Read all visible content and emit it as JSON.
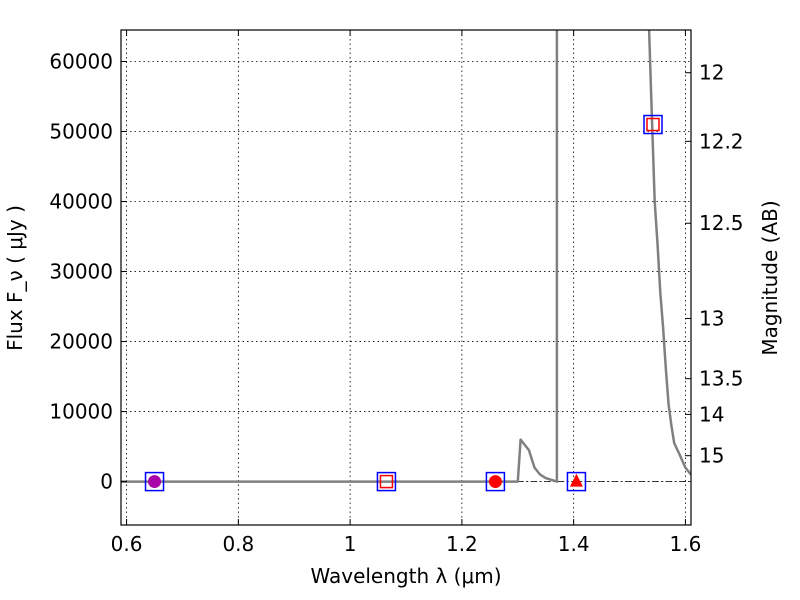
{
  "chart_data": {
    "type": "line",
    "title": "",
    "xlabel": "Wavelength  λ (μm)",
    "ylabel": "Flux  F_ν  ( μJy )",
    "ylabel_right": "Magnitude (AB)",
    "xlim": [
      0.59,
      1.61
    ],
    "ylim": [
      -6200,
      64500
    ],
    "grid": true,
    "x_ticks": [
      0.6,
      0.8,
      1.0,
      1.2,
      1.4,
      1.6
    ],
    "x_tick_labels": [
      "0.6",
      "0.8",
      "1",
      "1.2",
      "1.4",
      "1.6"
    ],
    "y_ticks": [
      0,
      10000,
      20000,
      30000,
      40000,
      50000,
      60000
    ],
    "y_tick_labels": [
      "0",
      "10000",
      "20000",
      "30000",
      "40000",
      "50000",
      "60000"
    ],
    "right_ticks": [
      {
        "label": "12",
        "flux": 58400
      },
      {
        "label": "12.2",
        "flux": 48600
      },
      {
        "label": "12.5",
        "flux": 36900
      },
      {
        "label": "13",
        "flux": 23300
      },
      {
        "label": "13.5",
        "flux": 14700
      },
      {
        "label": "14",
        "flux": 9600
      },
      {
        "label": "15",
        "flux": 3700
      }
    ],
    "series": [
      {
        "type": "line",
        "color": "#808080",
        "points": [
          [
            0.59,
            0
          ],
          [
            1.3,
            0
          ],
          [
            1.305,
            6000
          ],
          [
            1.32,
            4500
          ],
          [
            1.33,
            2000
          ],
          [
            1.34,
            1000
          ],
          [
            1.35,
            500
          ],
          [
            1.37,
            0
          ],
          [
            1.37,
            64500
          ]
        ]
      },
      {
        "type": "line",
        "color": "#808080",
        "points": [
          [
            1.535,
            64500
          ],
          [
            1.54,
            52000
          ],
          [
            1.545,
            40000
          ],
          [
            1.55,
            34000
          ],
          [
            1.555,
            27000
          ],
          [
            1.56,
            22000
          ],
          [
            1.565,
            16000
          ],
          [
            1.57,
            11000
          ],
          [
            1.575,
            8000
          ],
          [
            1.58,
            5500
          ],
          [
            1.59,
            3800
          ],
          [
            1.6,
            2000
          ],
          [
            1.61,
            1000
          ]
        ]
      }
    ],
    "markers": [
      {
        "x": 0.65,
        "y": 0,
        "shape": "square",
        "color": "#0000ff"
      },
      {
        "x": 0.65,
        "y": 0,
        "shape": "circle",
        "color": "#aa00aa"
      },
      {
        "x": 1.065,
        "y": 0,
        "shape": "square",
        "color": "#0000ff"
      },
      {
        "x": 1.065,
        "y": 0,
        "shape": "square",
        "color": "#ff0000",
        "small": true
      },
      {
        "x": 1.26,
        "y": 0,
        "shape": "square",
        "color": "#0000ff"
      },
      {
        "x": 1.26,
        "y": 0,
        "shape": "circle",
        "color": "#ff0000"
      },
      {
        "x": 1.405,
        "y": 0,
        "shape": "square",
        "color": "#0000ff"
      },
      {
        "x": 1.405,
        "y": 0,
        "shape": "triangle",
        "color": "#ff0000"
      },
      {
        "x": 1.542,
        "y": 51000,
        "shape": "square",
        "color": "#0000ff"
      },
      {
        "x": 1.542,
        "y": 51000,
        "shape": "square",
        "color": "#ff0000",
        "small": true
      }
    ],
    "baseline": {
      "y": 0,
      "color": "#000000",
      "style": "dashdot",
      "x_from": 1.3
    }
  }
}
